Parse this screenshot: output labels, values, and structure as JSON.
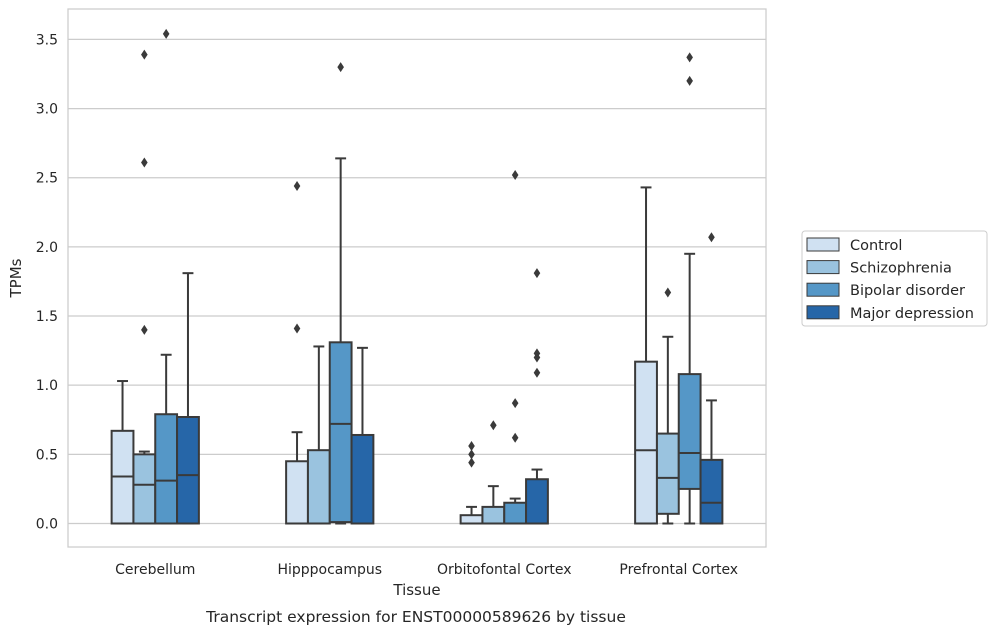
{
  "chart_data": {
    "type": "box",
    "xlabel": "Tissue",
    "ylabel": "TPMs",
    "caption": "Transcript expression for ENST00000589626 by tissue",
    "ylim": [
      -0.17,
      3.72
    ],
    "yticks": [
      "0.0",
      "0.5",
      "1.0",
      "1.5",
      "2.0",
      "2.5",
      "3.0",
      "3.5"
    ],
    "grid": "horizontal",
    "legend_position": "right",
    "categories": [
      "Cerebellum",
      "Hipppocampus",
      "Orbitofontal Cortex",
      "Prefrontal Cortex"
    ],
    "series": [
      {
        "name": "Control",
        "color": "#d0e1f2",
        "boxes": [
          {
            "q1": 0.0,
            "median": 0.34,
            "q3": 0.67,
            "whisker_low": 0.0,
            "whisker_high": 1.03,
            "outliers": []
          },
          {
            "q1": 0.0,
            "median": 0.0,
            "q3": 0.45,
            "whisker_low": 0.0,
            "whisker_high": 0.66,
            "outliers": [
              2.44,
              1.41
            ]
          },
          {
            "q1": 0.0,
            "median": 0.0,
            "q3": 0.06,
            "whisker_low": 0.0,
            "whisker_high": 0.12,
            "outliers": [
              0.56,
              0.5,
              0.44
            ]
          },
          {
            "q1": 0.0,
            "median": 0.53,
            "q3": 1.17,
            "whisker_low": 0.0,
            "whisker_high": 2.43,
            "outliers": []
          }
        ]
      },
      {
        "name": "Schizophrenia",
        "color": "#9ac3df",
        "boxes": [
          {
            "q1": 0.0,
            "median": 0.28,
            "q3": 0.5,
            "whisker_low": 0.0,
            "whisker_high": 0.52,
            "outliers": [
              3.39,
              2.61,
              1.4
            ]
          },
          {
            "q1": 0.0,
            "median": 0.0,
            "q3": 0.53,
            "whisker_low": 0.0,
            "whisker_high": 1.28,
            "outliers": []
          },
          {
            "q1": 0.0,
            "median": 0.0,
            "q3": 0.12,
            "whisker_low": 0.0,
            "whisker_high": 0.27,
            "outliers": [
              0.71
            ]
          },
          {
            "q1": 0.07,
            "median": 0.33,
            "q3": 0.65,
            "whisker_low": 0.0,
            "whisker_high": 1.35,
            "outliers": [
              1.67
            ]
          }
        ]
      },
      {
        "name": "Bipolar disorder",
        "color": "#5597c7",
        "boxes": [
          {
            "q1": 0.0,
            "median": 0.31,
            "q3": 0.79,
            "whisker_low": 0.0,
            "whisker_high": 1.22,
            "outliers": [
              3.54
            ]
          },
          {
            "q1": 0.01,
            "median": 0.72,
            "q3": 1.31,
            "whisker_low": 0.0,
            "whisker_high": 2.64,
            "outliers": [
              3.3
            ]
          },
          {
            "q1": 0.0,
            "median": 0.0,
            "q3": 0.15,
            "whisker_low": 0.0,
            "whisker_high": 0.18,
            "outliers": [
              2.52,
              0.87,
              0.62
            ]
          },
          {
            "q1": 0.25,
            "median": 0.51,
            "q3": 1.08,
            "whisker_low": 0.0,
            "whisker_high": 1.95,
            "outliers": [
              3.37,
              3.2
            ]
          }
        ]
      },
      {
        "name": "Major depression",
        "color": "#2666a8",
        "boxes": [
          {
            "q1": 0.0,
            "median": 0.35,
            "q3": 0.77,
            "whisker_low": 0.0,
            "whisker_high": 1.81,
            "outliers": []
          },
          {
            "q1": 0.0,
            "median": 0.0,
            "q3": 0.64,
            "whisker_low": 0.0,
            "whisker_high": 1.27,
            "outliers": []
          },
          {
            "q1": 0.0,
            "median": 0.0,
            "q3": 0.32,
            "whisker_low": 0.0,
            "whisker_high": 0.39,
            "outliers": [
              1.81,
              1.23,
              1.2,
              1.09
            ]
          },
          {
            "q1": 0.0,
            "median": 0.15,
            "q3": 0.46,
            "whisker_low": 0.0,
            "whisker_high": 0.89,
            "outliers": [
              2.07
            ]
          }
        ]
      }
    ]
  }
}
